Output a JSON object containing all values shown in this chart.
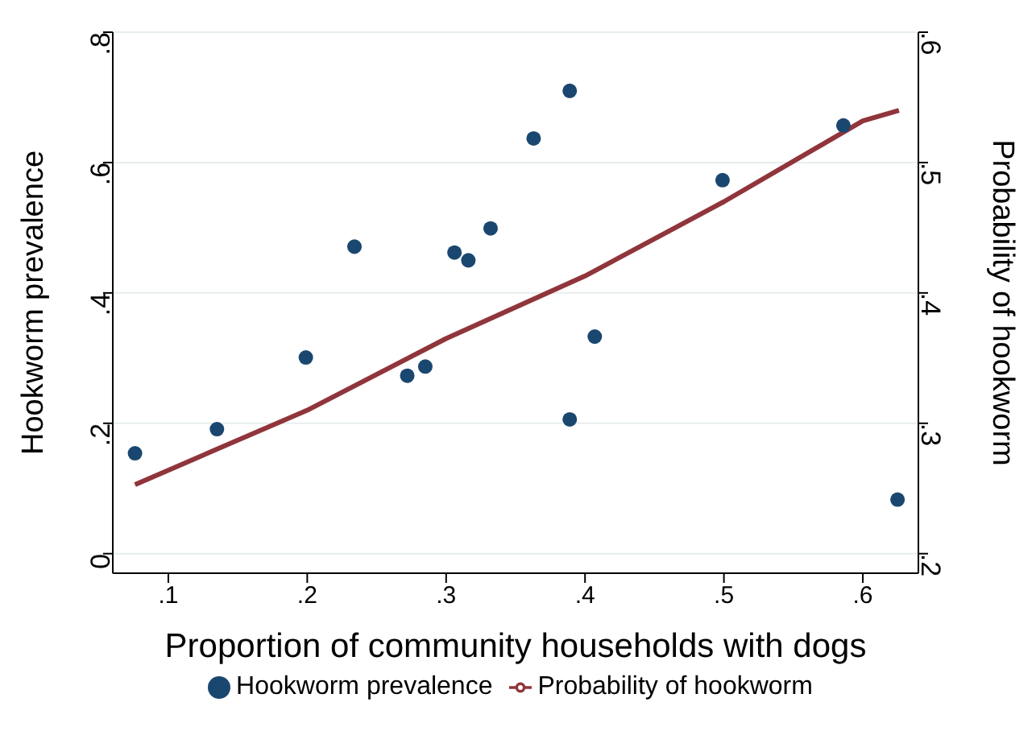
{
  "chart_data": {
    "type": "scatter",
    "xlabel": "Proportion of community households with dogs",
    "ylabel": "Hookworm prevalence",
    "y2label": "Probability of hookworm",
    "x": [
      0.076,
      0.135,
      0.199,
      0.234,
      0.272,
      0.285,
      0.306,
      0.316,
      0.332,
      0.363,
      0.389,
      0.389,
      0.407,
      0.499,
      0.586,
      0.625
    ],
    "series": [
      {
        "name": "Hookworm prevalence",
        "color": "#1a476f",
        "marker": "circle",
        "values": [
          0.154,
          0.191,
          0.301,
          0.471,
          0.273,
          0.287,
          0.462,
          0.45,
          0.499,
          0.637,
          0.71,
          0.206,
          0.333,
          0.573,
          0.657,
          0.083
        ]
      },
      {
        "name": "Probability of hookworm",
        "type": "line",
        "axis": "y2",
        "color": "#90353b",
        "marker": "none",
        "line_style": "solid",
        "x": [
          0.076,
          0.2,
          0.3,
          0.4,
          0.5,
          0.6,
          0.626
        ],
        "values": [
          0.253,
          0.31,
          0.365,
          0.413,
          0.47,
          0.532,
          0.54
        ]
      }
    ],
    "xlim": [
      0.06,
      0.64
    ],
    "xticks": [
      {
        "value": 0.1,
        "label": ".1"
      },
      {
        "value": 0.2,
        "label": ".2"
      },
      {
        "value": 0.3,
        "label": ".3"
      },
      {
        "value": 0.4,
        "label": ".4"
      },
      {
        "value": 0.5,
        "label": ".5"
      },
      {
        "value": 0.6,
        "label": ".6"
      }
    ],
    "ylim": [
      -0.03,
      0.8
    ],
    "yticks": [
      {
        "value": 0,
        "label": "0"
      },
      {
        "value": 0.2,
        "label": ".2"
      },
      {
        "value": 0.4,
        "label": ".4"
      },
      {
        "value": 0.6,
        "label": ".6"
      },
      {
        "value": 0.8,
        "label": ".8"
      }
    ],
    "y2lim": [
      0.185,
      0.6
    ],
    "y2ticks": [
      {
        "value": 0.2,
        "label": ".2"
      },
      {
        "value": 0.3,
        "label": ".3"
      },
      {
        "value": 0.4,
        "label": ".4"
      },
      {
        "value": 0.5,
        "label": ".5"
      },
      {
        "value": 0.6,
        "label": ".6"
      }
    ],
    "grid": "y",
    "legend": "bottom"
  }
}
